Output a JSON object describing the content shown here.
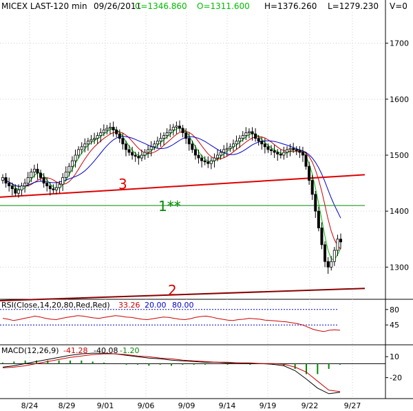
{
  "header": {
    "symbol": "MICEX LAST-120 min",
    "date": "09/26/2011",
    "close": "C=1346.860",
    "open": "O=1311.600",
    "high": "H=1376.260",
    "low": "L=1279.230",
    "volume": "V=0"
  },
  "rsi_panel": {
    "label": "RSI(Close,14,20,80,Red,Red)",
    "value": "33.26",
    "low": "20.00",
    "high": "80.00"
  },
  "macd_panel": {
    "label": "MACD(12,26,9)",
    "macd": "-41.28",
    "signal": "-40.08",
    "hist": "-1.20"
  },
  "trendline_labels": [
    "3",
    "1**",
    "2"
  ],
  "colors": {
    "up": "#000000",
    "down": "#000000",
    "ma_fast": "#00bb00",
    "ma_mid": "#cc0000",
    "ma_slow": "#0000cc",
    "trend3": "#dd0000",
    "trend1": "#008800",
    "trend2": "#880000",
    "rsi": "#cc0000",
    "macd": "#000000",
    "macd_signal": "#cc0000",
    "hist": "#008800"
  },
  "chart_data": [
    {
      "type": "candlestick",
      "title": "",
      "x": [
        "8/24",
        "8/29",
        "9/01",
        "9/06",
        "9/09",
        "9/14",
        "9/19",
        "9/22",
        "9/27"
      ],
      "y_ticks": [
        1300,
        1400,
        1500,
        1600,
        1700
      ],
      "ylim": [
        1245,
        1755
      ],
      "closes": [
        1460,
        1450,
        1445,
        1440,
        1432,
        1438,
        1445,
        1450,
        1460,
        1470,
        1475,
        1468,
        1460,
        1450,
        1445,
        1440,
        1438,
        1442,
        1448,
        1460,
        1470,
        1480,
        1490,
        1500,
        1510,
        1515,
        1520,
        1525,
        1528,
        1530,
        1535,
        1540,
        1545,
        1548,
        1550,
        1545,
        1538,
        1530,
        1520,
        1510,
        1505,
        1500,
        1498,
        1495,
        1500,
        1505,
        1510,
        1515,
        1520,
        1525,
        1530,
        1535,
        1540,
        1545,
        1550,
        1552,
        1548,
        1540,
        1530,
        1520,
        1510,
        1500,
        1495,
        1490,
        1488,
        1485,
        1490,
        1495,
        1500,
        1505,
        1510,
        1512,
        1515,
        1520,
        1525,
        1530,
        1535,
        1540,
        1542,
        1538,
        1530,
        1525,
        1520,
        1515,
        1510,
        1508,
        1505,
        1502,
        1500,
        1505,
        1510,
        1512,
        1510,
        1508,
        1505,
        1500,
        1480,
        1455,
        1430,
        1400,
        1370,
        1340,
        1310,
        1300,
        1310,
        1330,
        1350,
        1345
      ],
      "ma_series": [
        "ma_fast",
        "ma_mid",
        "ma_slow"
      ],
      "trendlines": [
        {
          "label": "3",
          "from": 1425,
          "to": 1465
        },
        {
          "label": "1**",
          "from": 1410,
          "to": 1410
        },
        {
          "label": "2",
          "from": 1240,
          "to": 1262
        }
      ]
    },
    {
      "type": "line",
      "title": "",
      "y_ticks": [
        45,
        80
      ],
      "ylim": [
        0,
        100
      ],
      "values": [
        60,
        58,
        55,
        57,
        60,
        62,
        65,
        63,
        60,
        58,
        57,
        60,
        62,
        64,
        66,
        65,
        63,
        61,
        60,
        62,
        64,
        66,
        65,
        63,
        62,
        60,
        58,
        57,
        59,
        61,
        63,
        62,
        60,
        58,
        57,
        59,
        62,
        64,
        65,
        63,
        60,
        58,
        56,
        55,
        57,
        58,
        60,
        59,
        58,
        56,
        55,
        54,
        53,
        52,
        50,
        48,
        45,
        40,
        35,
        32,
        30,
        33,
        34,
        33
      ]
    },
    {
      "type": "bar",
      "title": "",
      "y_ticks": [
        10,
        -20
      ],
      "ylim": [
        -50,
        25
      ],
      "macd": [
        -5,
        -3,
        0,
        3,
        6,
        9,
        12,
        14,
        15,
        15,
        14,
        12,
        10,
        8,
        7,
        5,
        4,
        3,
        2,
        2,
        1,
        1,
        0,
        0,
        -1,
        -3,
        -10,
        -22,
        -35,
        -43,
        -41
      ],
      "signal": [
        -6,
        -5,
        -3,
        0,
        3,
        6,
        9,
        11,
        13,
        14,
        14,
        13,
        11,
        10,
        8,
        7,
        5,
        4,
        3,
        2,
        2,
        1,
        1,
        0,
        0,
        -1,
        -5,
        -12,
        -25,
        -38,
        -40
      ],
      "hist": [
        1,
        2,
        3,
        3,
        3,
        3,
        3,
        3,
        2,
        1,
        0,
        -1,
        -1,
        -2,
        -1,
        -2,
        -1,
        -1,
        -1,
        0,
        -1,
        0,
        -1,
        0,
        -1,
        -2,
        -5,
        -10,
        -10,
        -5,
        -1
      ]
    }
  ]
}
